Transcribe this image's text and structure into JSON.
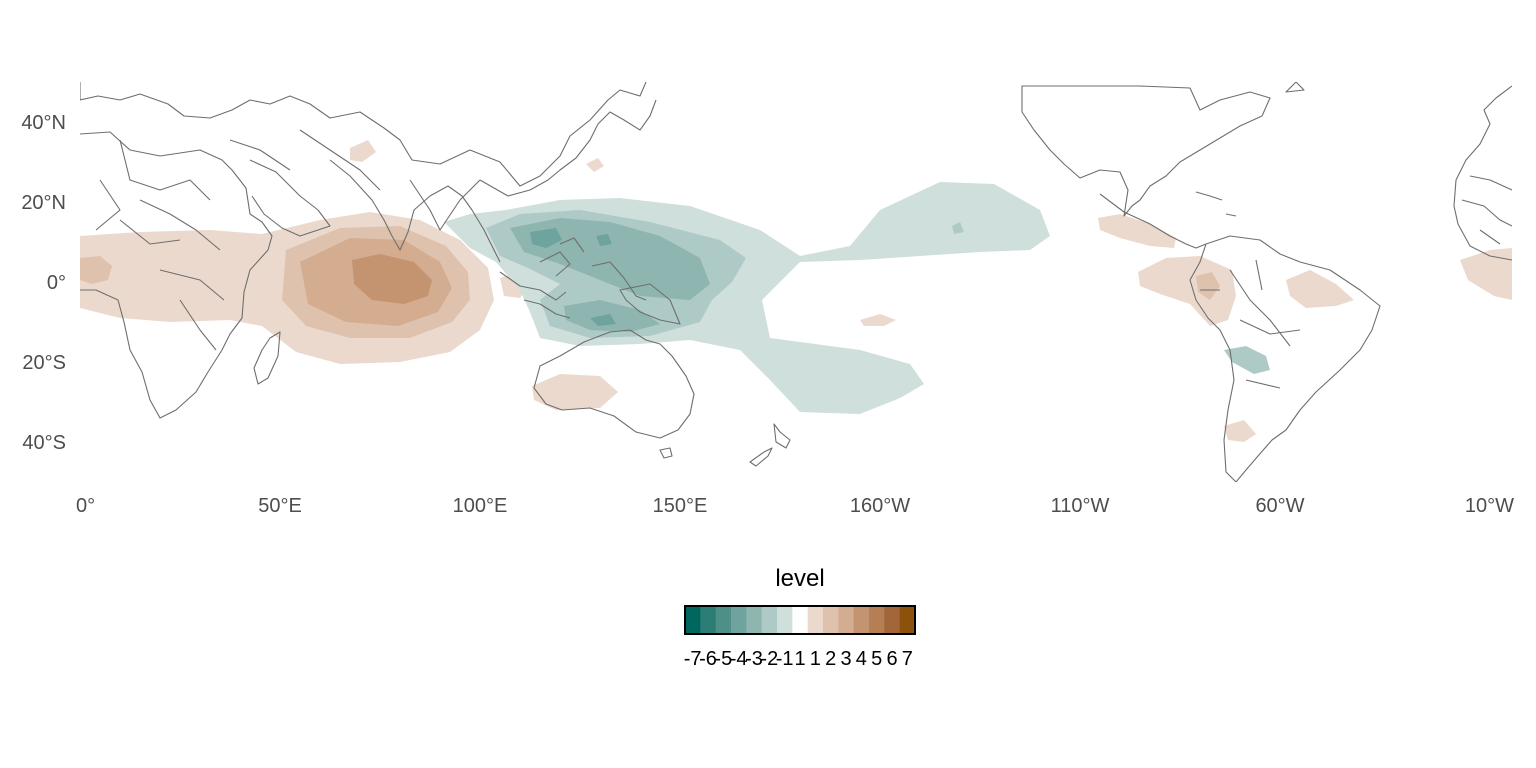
{
  "map": {
    "lat_ticks": [
      {
        "lat": 40,
        "label": "40°N"
      },
      {
        "lat": 20,
        "label": "20°N"
      },
      {
        "lat": 0,
        "label": "0°"
      },
      {
        "lat": -20,
        "label": "20°S"
      },
      {
        "lat": -40,
        "label": "40°S"
      }
    ],
    "lon_ticks": [
      {
        "lon": 0,
        "label": "0°"
      },
      {
        "lon": 50,
        "label": "50°E"
      },
      {
        "lon": 100,
        "label": "100°E"
      },
      {
        "lon": 150,
        "label": "150°E"
      },
      {
        "lon": 200,
        "label": "160°W"
      },
      {
        "lon": 250,
        "label": "110°W"
      },
      {
        "lon": 300,
        "label": "60°W"
      },
      {
        "lon": 350,
        "label": "10°W"
      }
    ],
    "lon_range": [
      0,
      358
    ],
    "lat_range": [
      -50,
      50
    ],
    "grid": false
  },
  "legend": {
    "title": "level",
    "placement": "bottom",
    "levels": [
      {
        "label": "-7",
        "color": "#01665e"
      },
      {
        "label": "-6",
        "color": "#2c7d75"
      },
      {
        "label": "-5",
        "color": "#4e8f88"
      },
      {
        "label": "-4",
        "color": "#6fa39d"
      },
      {
        "label": "-3",
        "color": "#8fb5b0"
      },
      {
        "label": "-2",
        "color": "#aecac6"
      },
      {
        "label": "-1",
        "color": "#cfdfdc"
      },
      {
        "label": "1",
        "color": "#ffffff"
      },
      {
        "label": "1",
        "color": "#ecd9cd"
      },
      {
        "label": "2",
        "color": "#dfc2ae"
      },
      {
        "label": "3",
        "color": "#d4ac90"
      },
      {
        "label": "4",
        "color": "#c49471"
      },
      {
        "label": "5",
        "color": "#b67e54"
      },
      {
        "label": "6",
        "color": "#a3663a"
      },
      {
        "label": "7",
        "color": "#8c510a"
      }
    ]
  }
}
